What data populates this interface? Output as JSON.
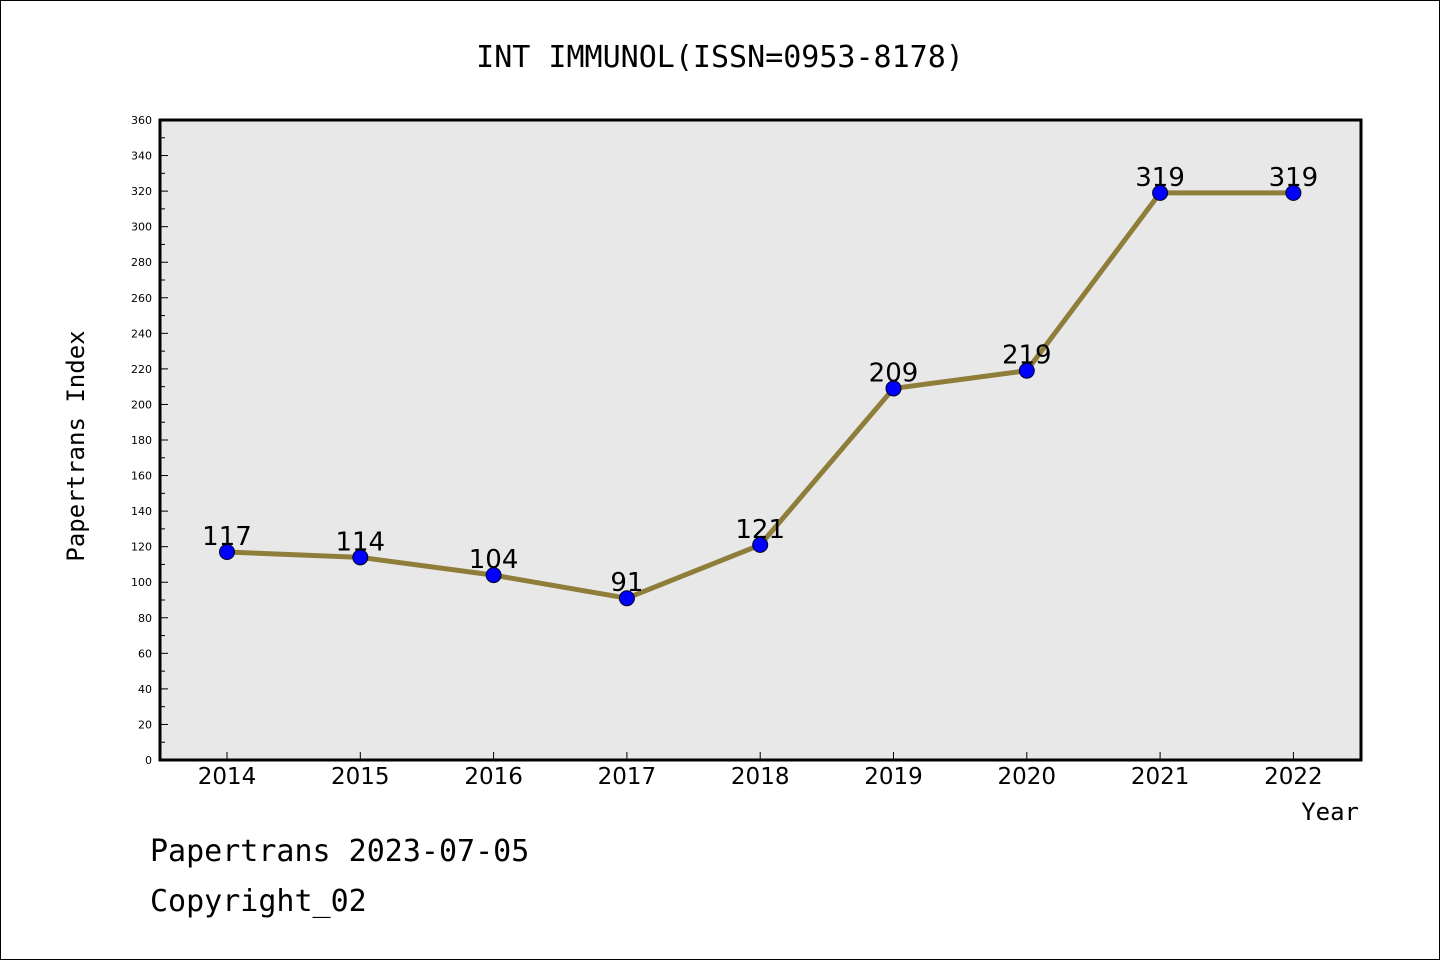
{
  "chart_data": {
    "type": "line",
    "title": "INT IMMUNOL(ISSN=0953-8178)",
    "xlabel": "Year",
    "ylabel": "Papertrans Index",
    "categories": [
      "2014",
      "2015",
      "2016",
      "2017",
      "2018",
      "2019",
      "2020",
      "2021",
      "2022"
    ],
    "series": [
      {
        "values": [
          117,
          114,
          104,
          91,
          121,
          209,
          219,
          319,
          319
        ]
      }
    ],
    "data_labels": [
      "117",
      "114",
      "104",
      "91",
      "121",
      "209",
      "219",
      "319",
      "319"
    ],
    "ylim": [
      0,
      360
    ],
    "y_ticks": [
      0,
      20,
      40,
      60,
      80,
      100,
      120,
      140,
      160,
      180,
      200,
      220,
      240,
      260,
      280,
      300,
      320,
      340,
      360
    ],
    "grid": false,
    "line_color": "#8f7d3a",
    "marker_color": "#0000ff",
    "plot_background": "#e8e8e8"
  },
  "footer": {
    "line1": "Papertrans 2023-07-05",
    "line2": "Copyright_02"
  }
}
